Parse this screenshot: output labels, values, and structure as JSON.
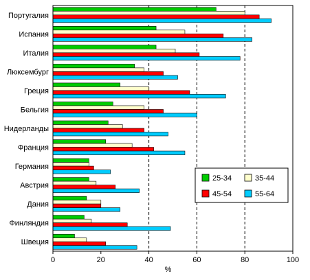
{
  "chart_data": {
    "type": "bar",
    "orientation": "horizontal",
    "title": "",
    "xlabel": "%",
    "ylabel": "",
    "xlim": [
      0,
      100
    ],
    "xticks": [
      "0",
      "20",
      "40",
      "60",
      "80",
      "100"
    ],
    "grid": "vertical dashed at 40, 60, 80",
    "legend_position": "bottom-right",
    "categories": [
      "Португалия",
      "Испания",
      "Италия",
      "Люксембург",
      "Греция",
      "Бельгия",
      "Нидерланды",
      "Франция",
      "Германия",
      "Австрия",
      "Дания",
      "Финляндия",
      "Швеция"
    ],
    "series": [
      {
        "name": "25-34",
        "color": "#00cc00",
        "values": [
          68,
          43,
          43,
          34,
          28,
          25,
          23,
          22,
          15,
          15,
          14,
          13,
          9
        ]
      },
      {
        "name": "35-44",
        "color": "#ffffcc",
        "values": [
          80,
          55,
          51,
          38,
          40,
          38,
          29,
          33,
          15,
          18,
          20,
          16,
          14
        ]
      },
      {
        "name": "45-54",
        "color": "#ff0000",
        "values": [
          86,
          71,
          61,
          46,
          57,
          46,
          38,
          42,
          17,
          26,
          20,
          31,
          22
        ]
      },
      {
        "name": "55-64",
        "color": "#00ccff",
        "values": [
          91,
          83,
          78,
          52,
          72,
          60,
          48,
          55,
          24,
          36,
          28,
          49,
          35
        ]
      }
    ]
  }
}
